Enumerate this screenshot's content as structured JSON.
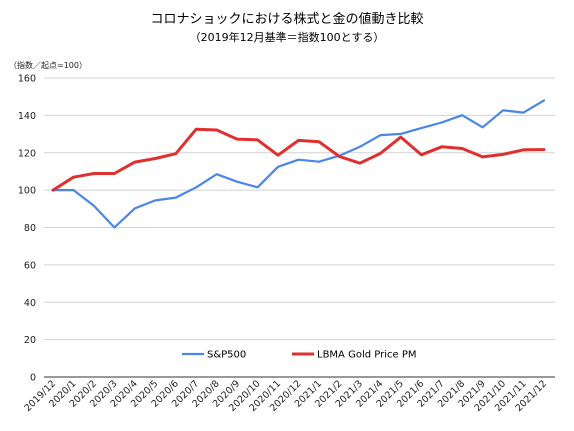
{
  "chart_data": {
    "type": "line",
    "title": "コロナショックにおける株式と金の値動き比較",
    "subtitle": "（2019年12月基準＝指数100とする）",
    "unit_label": "（指数／起点=100）",
    "ylim": [
      0,
      160
    ],
    "yticks": [
      "0",
      "20",
      "40",
      "60",
      "80",
      "100",
      "120",
      "140",
      "160"
    ],
    "grid": true,
    "legend_position": "bottom-center",
    "categories": [
      "2019/12",
      "2020/1",
      "2020/2",
      "2020/3",
      "2020/4",
      "2020/5",
      "2020/6",
      "2020/7",
      "2020/8",
      "2020/9",
      "2020/10",
      "2020/11",
      "2020/12",
      "2021/1",
      "2021/2",
      "2021/3",
      "2021/4",
      "2021/5",
      "2021/6",
      "2021/7",
      "2021/8",
      "2021/9",
      "2021/10",
      "2021/11",
      "2021/12"
    ],
    "series": [
      {
        "name": "S&P500",
        "color": "#4a86e8",
        "values": [
          100,
          100,
          91.6,
          80,
          90.2,
          94.5,
          96,
          101.5,
          108.5,
          104.5,
          101.5,
          112.5,
          116.3,
          115.2,
          118.4,
          123.2,
          129.4,
          130.1,
          133.2,
          136.2,
          140.1,
          133.6,
          142.7,
          141.5,
          148
        ]
      },
      {
        "name": "LBMA Gold Price PM",
        "color": "#e0302e",
        "values": [
          100,
          106.9,
          108.9,
          108.9,
          115,
          116.9,
          119.5,
          132.6,
          132.2,
          127.3,
          126.9,
          118.7,
          126.6,
          125.9,
          118,
          114.4,
          119.6,
          128.4,
          118.9,
          123.2,
          122.3,
          117.8,
          119.1,
          121.6,
          121.7
        ]
      }
    ]
  }
}
